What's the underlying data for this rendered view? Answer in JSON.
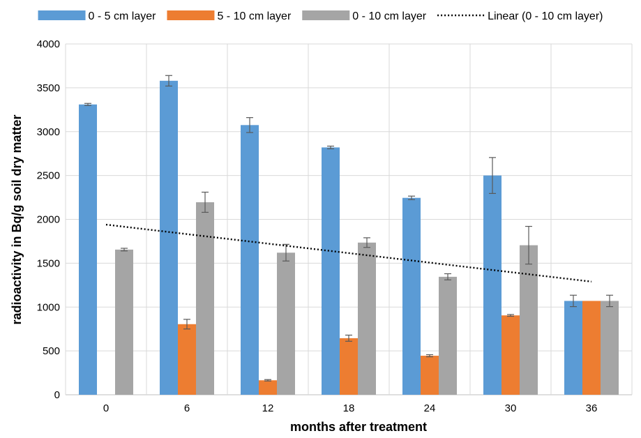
{
  "chart_data": {
    "type": "bar",
    "xlabel": "months after treatment",
    "ylabel": "radioactivity in Bq/g soil dry matter",
    "categories": [
      "0",
      "6",
      "12",
      "18",
      "24",
      "30",
      "36"
    ],
    "ylim": [
      0,
      4000
    ],
    "yticks": [
      "0",
      "500",
      "1000",
      "1500",
      "2000",
      "2500",
      "3000",
      "3500",
      "4000"
    ],
    "grid": true,
    "legend_position": "top",
    "series": [
      {
        "name": "0 - 5 cm layer",
        "color": "#5b9bd5",
        "values": [
          3310,
          3580,
          3075,
          2820,
          2245,
          2500,
          1070
        ],
        "errors": [
          12,
          60,
          85,
          15,
          20,
          205,
          65
        ]
      },
      {
        "name": "5 - 10 cm layer",
        "color": "#ed7d31",
        "values": [
          null,
          805,
          165,
          645,
          445,
          905,
          1070
        ],
        "errors": [
          null,
          55,
          8,
          35,
          12,
          10,
          0
        ]
      },
      {
        "name": "0 - 10 cm layer",
        "color": "#a5a5a5",
        "values": [
          1655,
          2195,
          1620,
          1735,
          1345,
          1705,
          1070
        ],
        "errors": [
          15,
          115,
          95,
          55,
          35,
          215,
          65
        ]
      }
    ],
    "trendline": {
      "name": "Linear (0 - 10 cm layer)",
      "type": "linear",
      "series": "0 - 10 cm layer",
      "color": "#000000",
      "start": 1940,
      "end": 1290
    }
  }
}
